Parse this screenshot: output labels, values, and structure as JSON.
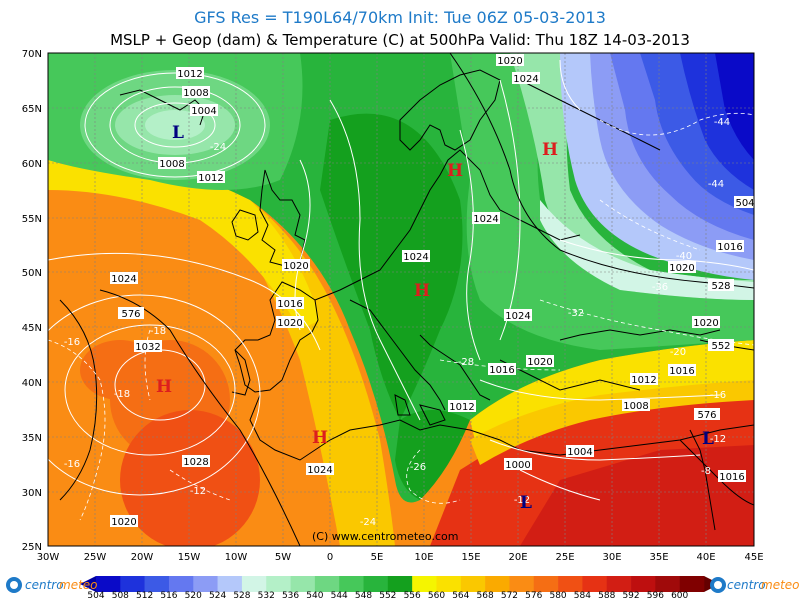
{
  "header": {
    "line1": "GFS Res = T190L64/70km   Init: Tue 06Z 05-03-2013",
    "line2": "MSLP + Geop (dam) & Temperature (C) at 500hPa  Valid: Thu 18Z 14-03-2013"
  },
  "axes": {
    "lat_labels": [
      "70N",
      "65N",
      "60N",
      "55N",
      "50N",
      "45N",
      "40N",
      "35N",
      "30N",
      "25N"
    ],
    "lon_labels": [
      "30W",
      "25W",
      "20W",
      "15W",
      "10W",
      "5W",
      "0",
      "5E",
      "10E",
      "15E",
      "20E",
      "25E",
      "30E",
      "35E",
      "40E",
      "45E"
    ]
  },
  "pressure_labels": [
    "1012",
    "1008",
    "1004",
    "1008",
    "1012",
    "1020",
    "1024",
    "1020",
    "1024",
    "1012",
    "1016",
    "1020",
    "1024",
    "1024",
    "1020",
    "1016",
    "1020",
    "1032",
    "1028",
    "1020",
    "1024",
    "1016",
    "1012",
    "1016",
    "1020",
    "1012",
    "1008",
    "1004",
    "1000",
    "1016",
    "1020",
    "1012",
    "1012",
    "1020",
    "1024",
    "1016"
  ],
  "temp_labels": [
    "-24",
    "-44",
    "-44",
    "-40",
    "-36",
    "-32",
    "-28",
    "-26",
    "-24",
    "-20",
    "-16",
    "-18",
    "-16",
    "-18",
    "-12",
    "-16",
    "-12",
    "-8",
    "-12"
  ],
  "geo_labels": [
    "528",
    "552",
    "576",
    "504",
    "576"
  ],
  "centers": {
    "low": "L",
    "high": "H"
  },
  "copyright": "(C) www.centrometeo.com",
  "colorbar": {
    "values": [
      "504",
      "508",
      "512",
      "516",
      "520",
      "524",
      "528",
      "532",
      "536",
      "540",
      "544",
      "548",
      "552",
      "556",
      "560",
      "564",
      "568",
      "572",
      "576",
      "580",
      "584",
      "588",
      "592",
      "596",
      "600"
    ],
    "colors": [
      "#0a0ac8",
      "#1e32dc",
      "#3c5ae6",
      "#6478f0",
      "#8c9cf5",
      "#b4c8fa",
      "#d2f5e6",
      "#b4f0c8",
      "#96e6aa",
      "#6ed782",
      "#46c85a",
      "#28b43c",
      "#14a01e",
      "#f5f500",
      "#fae100",
      "#fac800",
      "#faaa00",
      "#fa8c14",
      "#f56e14",
      "#f05014",
      "#e63214",
      "#d21e14",
      "#be0f0f",
      "#a00a0a",
      "#800000"
    ],
    "logo_left": "centro",
    "logo_left2": "meteo",
    "logo_right": "centro",
    "logo_right2": "meteo"
  }
}
